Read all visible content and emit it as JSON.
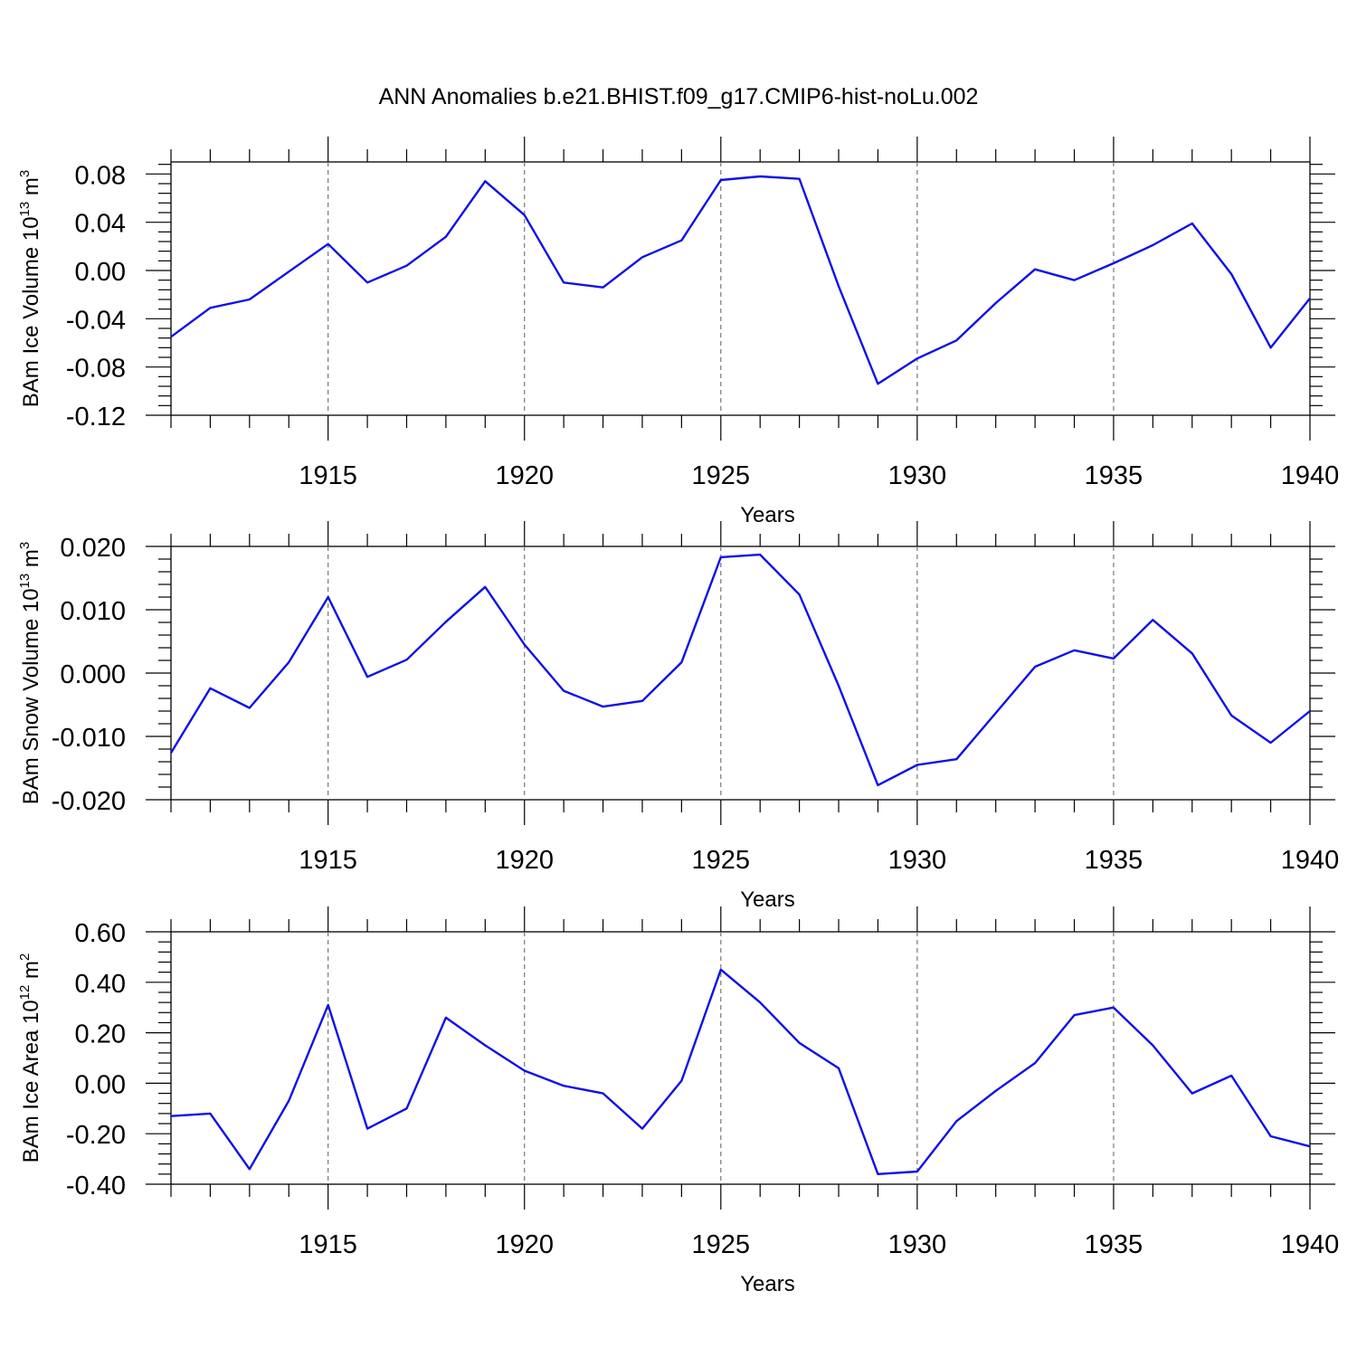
{
  "title": "ANN Anomalies b.e21.BHIST.f09_g17.CMIP6-hist-noLu.002",
  "colors": {
    "line": "#1010e8",
    "grid": "#777777",
    "axis": "#000000"
  },
  "chart_data": [
    {
      "type": "line",
      "ylabel": {
        "text": "BAm Ice Volume 10",
        "exp": "13",
        "unit": " m",
        "unit_exp": "3"
      },
      "xlabel": "Years",
      "xlim": [
        1911,
        1940
      ],
      "ylim": [
        -0.12,
        0.09
      ],
      "yticks": [
        "0.08",
        "0.04",
        "0.00",
        "-0.04",
        "-0.08",
        "-0.12"
      ],
      "ytick_values": [
        0.08,
        0.04,
        0.0,
        -0.04,
        -0.08,
        -0.12
      ],
      "xticks": [
        "1915",
        "1920",
        "1925",
        "1930",
        "1935",
        "1940"
      ],
      "xtick_values": [
        1915,
        1920,
        1925,
        1930,
        1935,
        1940
      ],
      "grid": "vertical dashed at major x ticks",
      "x": [
        1911,
        1912,
        1913,
        1914,
        1915,
        1916,
        1917,
        1918,
        1919,
        1920,
        1921,
        1922,
        1923,
        1924,
        1925,
        1926,
        1927,
        1928,
        1929,
        1930,
        1931,
        1932,
        1933,
        1934,
        1935,
        1936,
        1937,
        1938,
        1939,
        1940
      ],
      "y": [
        -0.055,
        -0.031,
        -0.024,
        -0.001,
        0.022,
        -0.01,
        0.004,
        0.028,
        0.074,
        0.046,
        -0.01,
        -0.014,
        0.011,
        0.025,
        0.075,
        0.078,
        0.076,
        -0.013,
        -0.094,
        -0.073,
        -0.058,
        -0.027,
        0.001,
        -0.008,
        0.006,
        0.021,
        0.039,
        -0.003,
        -0.064,
        -0.023
      ]
    },
    {
      "type": "line",
      "ylabel": {
        "text": "BAm Snow Volume 10",
        "exp": "13",
        "unit": " m",
        "unit_exp": "3"
      },
      "xlabel": "Years",
      "xlim": [
        1911,
        1940
      ],
      "ylim": [
        -0.02,
        0.02
      ],
      "yticks": [
        "0.020",
        "0.010",
        "0.000",
        "-0.010",
        "-0.020"
      ],
      "ytick_values": [
        0.02,
        0.01,
        0.0,
        -0.01,
        -0.02
      ],
      "xticks": [
        "1915",
        "1920",
        "1925",
        "1930",
        "1935",
        "1940"
      ],
      "xtick_values": [
        1915,
        1920,
        1925,
        1930,
        1935,
        1940
      ],
      "grid": "vertical dashed at major x ticks",
      "x": [
        1911,
        1912,
        1913,
        1914,
        1915,
        1916,
        1917,
        1918,
        1919,
        1920,
        1921,
        1922,
        1923,
        1924,
        1925,
        1926,
        1927,
        1928,
        1929,
        1930,
        1931,
        1932,
        1933,
        1934,
        1935,
        1936,
        1937,
        1938,
        1939,
        1940
      ],
      "y": [
        -0.0126,
        -0.0024,
        -0.0055,
        0.0017,
        0.012,
        -0.0006,
        0.0021,
        0.0081,
        0.0136,
        0.0045,
        -0.0028,
        -0.0053,
        -0.0044,
        0.0017,
        0.0183,
        0.0187,
        0.0124,
        -0.002,
        -0.0177,
        -0.0145,
        -0.0136,
        -0.0063,
        0.001,
        0.0036,
        0.0023,
        0.0084,
        0.0031,
        -0.0067,
        -0.011,
        -0.006
      ]
    },
    {
      "type": "line",
      "ylabel": {
        "text": "BAm Ice Area 10",
        "exp": "12",
        "unit": " m",
        "unit_exp": "2"
      },
      "xlabel": "Years",
      "xlim": [
        1911,
        1940
      ],
      "ylim": [
        -0.4,
        0.6
      ],
      "yticks": [
        "0.60",
        "0.40",
        "0.20",
        "0.00",
        "-0.20",
        "-0.40"
      ],
      "ytick_values": [
        0.6,
        0.4,
        0.2,
        0.0,
        -0.2,
        -0.4
      ],
      "xticks": [
        "1915",
        "1920",
        "1925",
        "1930",
        "1935",
        "1940"
      ],
      "xtick_values": [
        1915,
        1920,
        1925,
        1930,
        1935,
        1940
      ],
      "grid": "vertical dashed at major x ticks",
      "x": [
        1911,
        1912,
        1913,
        1914,
        1915,
        1916,
        1917,
        1918,
        1919,
        1920,
        1921,
        1922,
        1923,
        1924,
        1925,
        1926,
        1927,
        1928,
        1929,
        1930,
        1931,
        1932,
        1933,
        1934,
        1935,
        1936,
        1937,
        1938,
        1939,
        1940
      ],
      "y": [
        -0.13,
        -0.12,
        -0.34,
        -0.07,
        0.31,
        -0.18,
        -0.1,
        0.26,
        0.15,
        0.05,
        -0.01,
        -0.04,
        -0.18,
        0.01,
        0.45,
        0.32,
        0.16,
        0.06,
        -0.36,
        -0.35,
        -0.15,
        -0.03,
        0.08,
        0.27,
        0.3,
        0.15,
        -0.04,
        0.03,
        -0.21,
        -0.25
      ]
    }
  ]
}
